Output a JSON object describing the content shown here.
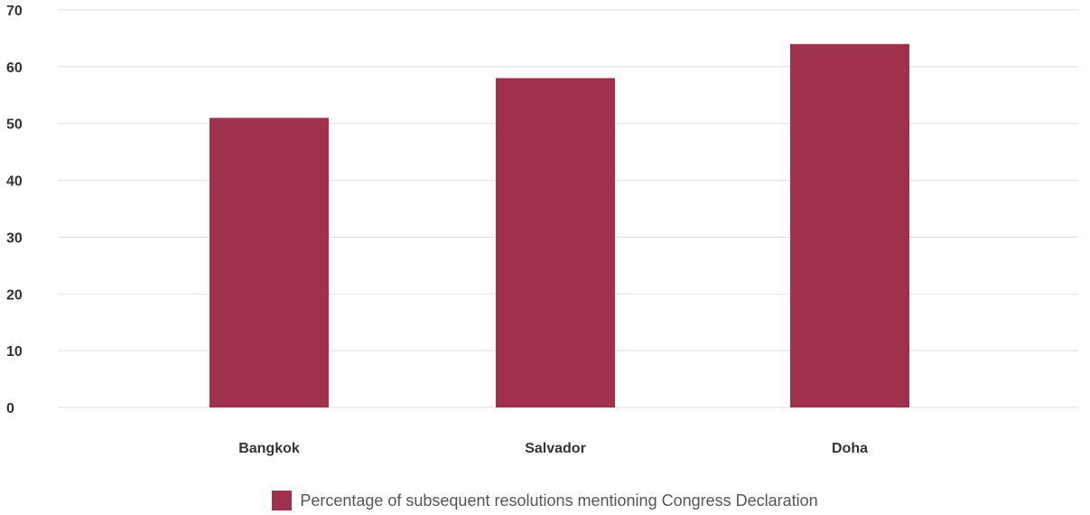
{
  "chart_data": {
    "type": "bar",
    "categories": [
      "Bangkok",
      "Salvador",
      "Doha"
    ],
    "series": [
      {
        "name": "Percentage of subsequent resolutions mentioning Congress Declaration",
        "values": [
          51,
          58,
          64
        ],
        "color": "#A0314D"
      }
    ],
    "ylim": [
      0,
      70
    ],
    "yticks": [
      0,
      10,
      20,
      30,
      40,
      50,
      60,
      70
    ],
    "grid": true,
    "legend_position": "bottom-center",
    "gridline_color": "#dddddd"
  }
}
